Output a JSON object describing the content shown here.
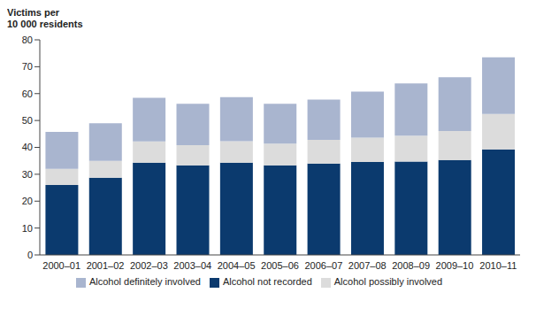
{
  "chart_data": {
    "type": "bar",
    "stacked": true,
    "grid": false,
    "legend": "bottom",
    "y_label": [
      "Victims per",
      "10 000 residents"
    ],
    "categories": [
      "2000–01",
      "2001–02",
      "2002–03",
      "2003–04",
      "2004–05",
      "2005–06",
      "2006–07",
      "2007–08",
      "2008–09",
      "2009–10",
      "2010–11"
    ],
    "series": [
      {
        "name": "Alcohol not recorded",
        "color": "#0b3a6e",
        "values": [
          26,
          28.7,
          34.3,
          33.3,
          34.3,
          33.3,
          34,
          34.6,
          34.7,
          35.3,
          39.3
        ]
      },
      {
        "name": "Alcohol possibly involved",
        "color": "#dcdcdc",
        "values": [
          6,
          6.3,
          7.9,
          7.5,
          8,
          8.1,
          8.8,
          9,
          9.7,
          10.8,
          13.1
        ]
      },
      {
        "name": "Alcohol definitely involved",
        "color": "#a9b5cf",
        "values": [
          13.8,
          14,
          16.2,
          15.4,
          16.4,
          14.8,
          15,
          17.1,
          19.4,
          20,
          21.1
        ]
      }
    ],
    "ylim": [
      0,
      80
    ],
    "yticks": [
      0,
      10,
      20,
      30,
      40,
      50,
      60,
      70,
      80
    ]
  }
}
